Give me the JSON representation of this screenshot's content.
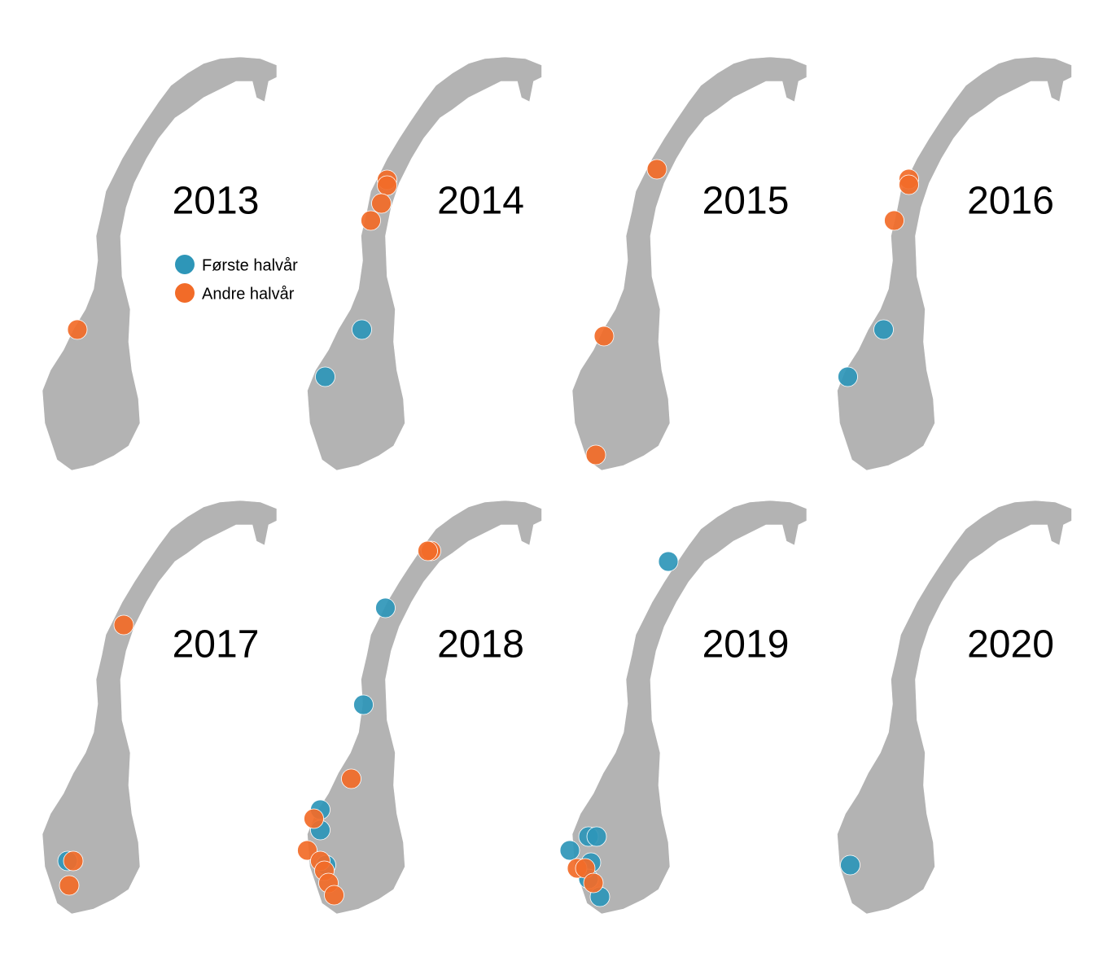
{
  "panels": [
    {
      "year": "2013"
    },
    {
      "year": "2014"
    },
    {
      "year": "2015"
    },
    {
      "year": "2016"
    },
    {
      "year": "2017"
    },
    {
      "year": "2018"
    },
    {
      "year": "2019"
    },
    {
      "year": "2020"
    }
  ],
  "legend": [
    {
      "label": "Første halvår",
      "color": "#2e96b8"
    },
    {
      "label": "Andre halvår",
      "color": "#f26b28"
    }
  ]
}
